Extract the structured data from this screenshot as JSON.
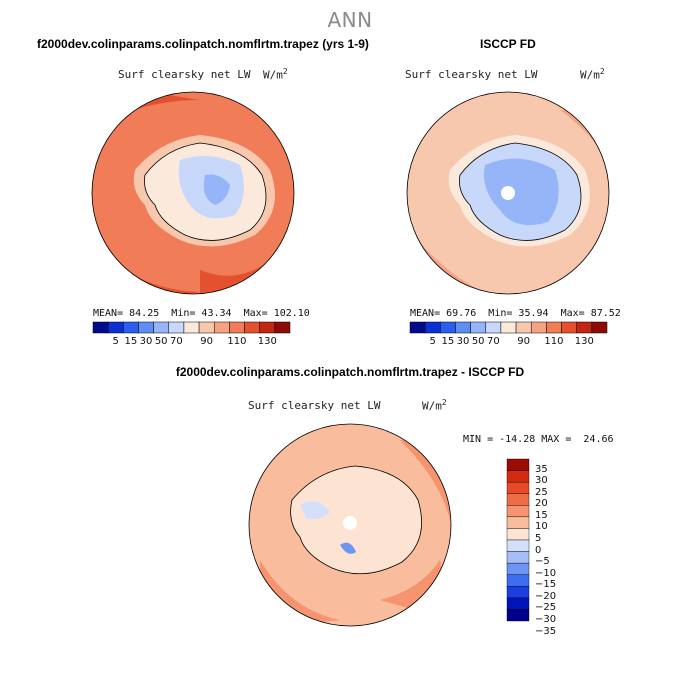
{
  "page_title": "ANN",
  "colors": {
    "seq_scale": [
      "#000a8c",
      "#0a2fd2",
      "#2a5ef0",
      "#5e8ef4",
      "#96b4f8",
      "#c8d8fa",
      "#fbe9dc",
      "#f8c8ae",
      "#f5a383",
      "#f07c58",
      "#e3512f",
      "#c12612",
      "#8e0a06"
    ],
    "diff_scale": [
      "#00008c",
      "#0014b8",
      "#1a3ee2",
      "#3f6df0",
      "#6f95f4",
      "#a6bdf8",
      "#d4e0fb",
      "#fde4d2",
      "#f9bc9c",
      "#f5946e",
      "#ef6c44",
      "#e84a27",
      "#d42a10",
      "#9e0a04"
    ],
    "continent_outline": "#000000"
  },
  "chart_data": [
    {
      "type": "heatmap",
      "subtype": "polar-stereographic-map",
      "title": "f2000dev.colinparams.colinpatch.nomflrtm.trapez (yrs 1-9)",
      "variable": "Surf clearsky net LW",
      "units": "W/m",
      "units_exp": "2",
      "stats": {
        "mean_label": "MEAN=",
        "mean": "84.25",
        "min_label": "Min=",
        "min": "43.34",
        "max_label": "Max=",
        "max": "102.10"
      },
      "colorbar_ticks": [
        "5",
        "15",
        "30",
        "50",
        "70",
        "90",
        "110",
        "130"
      ]
    },
    {
      "type": "heatmap",
      "subtype": "polar-stereographic-map",
      "title": "ISCCP FD",
      "variable": "Surf clearsky net LW",
      "units": "W/m",
      "units_exp": "2",
      "stats": {
        "mean_label": "MEAN=",
        "mean": "69.76",
        "min_label": "Min=",
        "min": "35.94",
        "max_label": "Max=",
        "max": "87.52"
      },
      "colorbar_ticks": [
        "5",
        "15",
        "30",
        "50",
        "70",
        "90",
        "110",
        "130"
      ]
    },
    {
      "type": "heatmap",
      "subtype": "polar-stereographic-map",
      "title": "f2000dev.colinparams.colinpatch.nomflrtm.trapez - ISCCP FD",
      "variable": "Surf clearsky net LW",
      "units": "W/m",
      "units_exp": "2",
      "stats_text": "MIN = -14.28 MAX =  24.66",
      "colorbar_levels": [
        "35",
        "30",
        "25",
        "20",
        "15",
        "10",
        "5",
        "0",
        "−5",
        "−10",
        "−15",
        "−20",
        "−25",
        "−30",
        "−35"
      ]
    }
  ]
}
